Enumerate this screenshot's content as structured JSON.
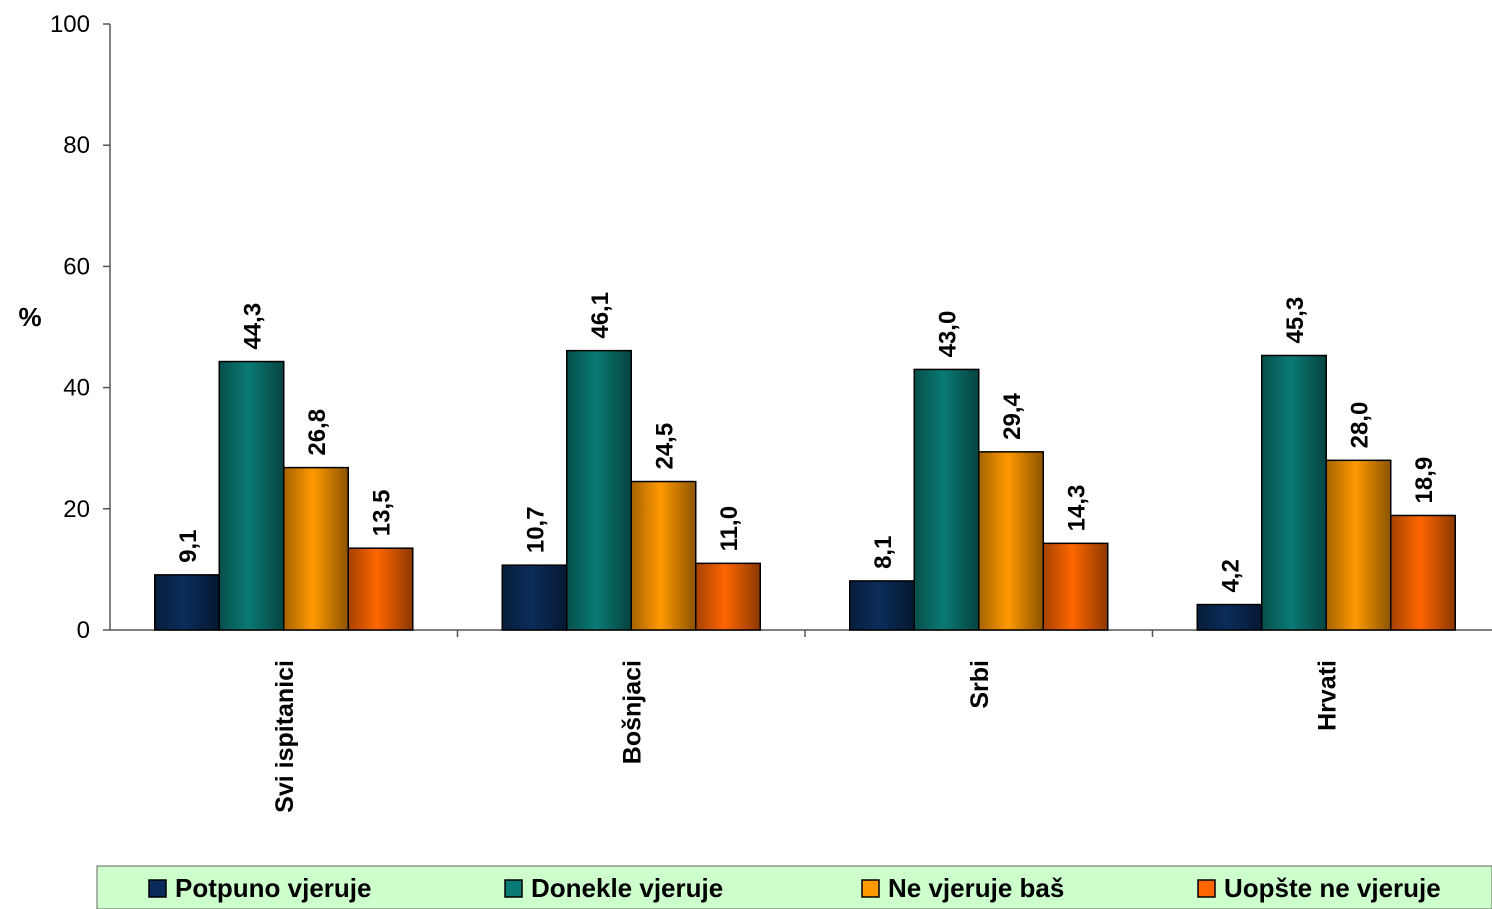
{
  "chart_data": {
    "type": "bar",
    "title": "",
    "xlabel": "",
    "ylabel": "%",
    "ylim": [
      0,
      100
    ],
    "yticks": [
      0,
      20,
      40,
      60,
      80,
      100
    ],
    "grid": false,
    "legend_position": "bottom",
    "categories": [
      "Svi ispitanici",
      "Bošnjaci",
      "Srbi",
      "Hrvati"
    ],
    "series": [
      {
        "name": "Potpuno vjeruje",
        "color": "#0b2c5a",
        "values": [
          9.1,
          10.7,
          8.1,
          4.2
        ],
        "labels": [
          "9,1",
          "10,7",
          "8,1",
          "4,2"
        ]
      },
      {
        "name": "Donekle vjeruje",
        "color": "#0a7a74",
        "values": [
          44.3,
          46.1,
          43.0,
          45.3
        ],
        "labels": [
          "44,3",
          "46,1",
          "43,0",
          "45,3"
        ]
      },
      {
        "name": "Ne vjeruje baš",
        "color": "#ff9900",
        "values": [
          26.8,
          24.5,
          29.4,
          28.0
        ],
        "labels": [
          "26,8",
          "24,5",
          "29,4",
          "28,0"
        ]
      },
      {
        "name": "Uopšte ne vjeruje",
        "color": "#ff6600",
        "values": [
          13.5,
          11.0,
          14.3,
          18.9
        ],
        "labels": [
          "13,5",
          "11,0",
          "14,3",
          "18,9"
        ]
      }
    ],
    "legend_background": "#ccffcc"
  }
}
